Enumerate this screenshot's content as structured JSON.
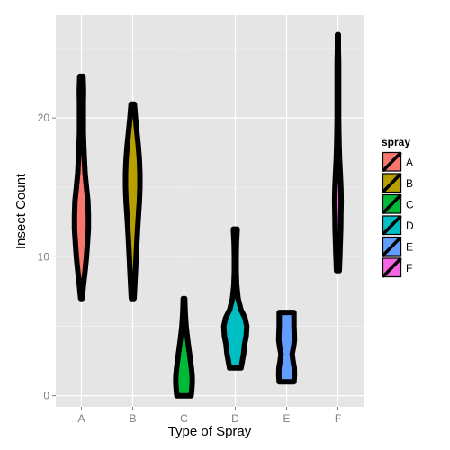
{
  "chart_data": {
    "type": "violin",
    "title": "",
    "xlabel": "Type of Spray",
    "ylabel": "Insect Count",
    "ylim": [
      -0.8,
      27.4
    ],
    "yticks": [
      0,
      10,
      20
    ],
    "categories": [
      "A",
      "B",
      "C",
      "D",
      "E",
      "F"
    ],
    "colors": [
      "#F8766D",
      "#B79F00",
      "#00BA38",
      "#00BFC4",
      "#619CFF",
      "#F564E3"
    ],
    "legend": {
      "title": "spray",
      "position": "right",
      "labels": [
        "A",
        "B",
        "C",
        "D",
        "E",
        "F"
      ]
    },
    "grid": true,
    "violins": [
      {
        "name": "A",
        "min": 7,
        "max": 23,
        "profile": [
          [
            7,
            0.03
          ],
          [
            8,
            0.09
          ],
          [
            9,
            0.16
          ],
          [
            10,
            0.22
          ],
          [
            11,
            0.26
          ],
          [
            12,
            0.3
          ],
          [
            13,
            0.3
          ],
          [
            14,
            0.28
          ],
          [
            15,
            0.22
          ],
          [
            16,
            0.16
          ],
          [
            17,
            0.13
          ],
          [
            18,
            0.1
          ],
          [
            19,
            0.08
          ],
          [
            20,
            0.08
          ],
          [
            21,
            0.08
          ],
          [
            22,
            0.09
          ],
          [
            23,
            0.07
          ]
        ]
      },
      {
        "name": "B",
        "min": 7,
        "max": 21,
        "profile": [
          [
            7,
            0.06
          ],
          [
            8,
            0.09
          ],
          [
            9,
            0.12
          ],
          [
            10,
            0.15
          ],
          [
            11,
            0.18
          ],
          [
            12,
            0.21
          ],
          [
            13,
            0.25
          ],
          [
            14,
            0.29
          ],
          [
            15,
            0.31
          ],
          [
            16,
            0.31
          ],
          [
            17,
            0.29
          ],
          [
            18,
            0.24
          ],
          [
            19,
            0.18
          ],
          [
            20,
            0.12
          ],
          [
            21,
            0.07
          ]
        ]
      },
      {
        "name": "C",
        "min": 0,
        "max": 7,
        "profile": [
          [
            0,
            0.31
          ],
          [
            0.5,
            0.34
          ],
          [
            1,
            0.36
          ],
          [
            1.5,
            0.35
          ],
          [
            2,
            0.32
          ],
          [
            3,
            0.24
          ],
          [
            4,
            0.16
          ],
          [
            5,
            0.09
          ],
          [
            6,
            0.05
          ],
          [
            7,
            0.03
          ]
        ]
      },
      {
        "name": "D",
        "min": 2,
        "max": 12,
        "profile": [
          [
            2,
            0.25
          ],
          [
            3,
            0.36
          ],
          [
            3.7,
            0.4
          ],
          [
            4.3,
            0.47
          ],
          [
            5,
            0.5
          ],
          [
            5.6,
            0.42
          ],
          [
            6.2,
            0.24
          ],
          [
            7,
            0.12
          ],
          [
            8,
            0.06
          ],
          [
            9,
            0.04
          ],
          [
            10,
            0.04
          ],
          [
            11,
            0.05
          ],
          [
            12,
            0.08
          ]
        ]
      },
      {
        "name": "E",
        "min": 1,
        "max": 6,
        "profile": [
          [
            1,
            0.32
          ],
          [
            1.5,
            0.34
          ],
          [
            2,
            0.33
          ],
          [
            2.5,
            0.28
          ],
          [
            3,
            0.24
          ],
          [
            3.5,
            0.3
          ],
          [
            4,
            0.34
          ],
          [
            4.5,
            0.33
          ],
          [
            5,
            0.32
          ],
          [
            6,
            0.32
          ]
        ]
      },
      {
        "name": "F",
        "min": 9,
        "max": 26,
        "profile": [
          [
            9,
            0.06
          ],
          [
            10,
            0.08
          ],
          [
            11,
            0.1
          ],
          [
            12,
            0.12
          ],
          [
            13,
            0.13
          ],
          [
            14,
            0.14
          ],
          [
            15,
            0.13
          ],
          [
            16,
            0.1
          ],
          [
            17,
            0.07
          ],
          [
            18,
            0.05
          ],
          [
            19,
            0.04
          ],
          [
            20,
            0.03
          ],
          [
            21,
            0.03
          ],
          [
            22,
            0.03
          ],
          [
            23,
            0.03
          ],
          [
            24,
            0.03
          ],
          [
            25,
            0.02
          ],
          [
            26,
            0.02
          ]
        ]
      }
    ]
  }
}
